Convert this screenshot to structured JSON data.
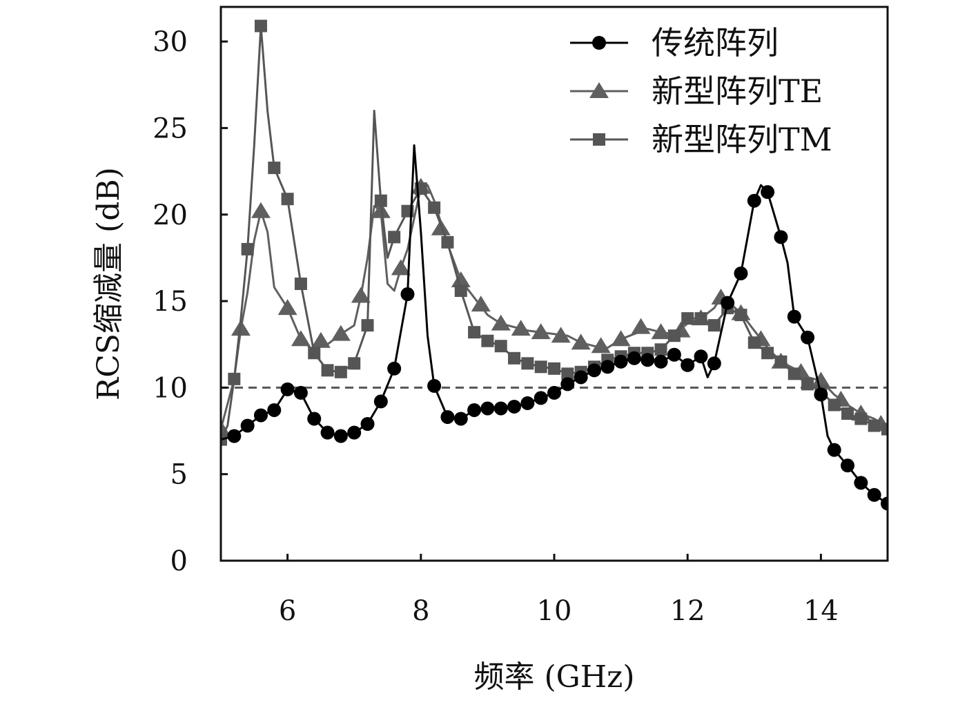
{
  "chart_data": {
    "type": "line",
    "title": "",
    "xlabel": "频率 (GHz)",
    "ylabel": "RCS缩减量 (dB)",
    "xlim": [
      5,
      15
    ],
    "ylim": [
      0,
      32
    ],
    "xticks": [
      6,
      8,
      10,
      12,
      14
    ],
    "yticks": [
      0,
      5,
      10,
      15,
      20,
      25,
      30
    ],
    "grid": false,
    "legend_position": "top-right",
    "reference_line": {
      "y": 10,
      "style": "dashed",
      "color": "#555555"
    },
    "series": [
      {
        "name": "传统阵列",
        "color": "#000000",
        "marker": "circle",
        "line": [
          [
            5.0,
            7.0
          ],
          [
            5.2,
            7.2
          ],
          [
            5.4,
            7.8
          ],
          [
            5.6,
            8.4
          ],
          [
            5.8,
            8.7
          ],
          [
            6.0,
            9.9
          ],
          [
            6.2,
            9.7
          ],
          [
            6.4,
            8.2
          ],
          [
            6.6,
            7.4
          ],
          [
            6.8,
            7.2
          ],
          [
            7.0,
            7.4
          ],
          [
            7.2,
            7.9
          ],
          [
            7.4,
            9.2
          ],
          [
            7.6,
            11.1
          ],
          [
            7.8,
            15.4
          ],
          [
            7.9,
            24.0
          ],
          [
            8.0,
            19.0
          ],
          [
            8.1,
            13.0
          ],
          [
            8.2,
            10.1
          ],
          [
            8.4,
            8.3
          ],
          [
            8.6,
            8.2
          ],
          [
            8.8,
            8.7
          ],
          [
            9.0,
            8.8
          ],
          [
            9.2,
            8.8
          ],
          [
            9.4,
            8.9
          ],
          [
            9.6,
            9.1
          ],
          [
            9.8,
            9.4
          ],
          [
            10.0,
            9.7
          ],
          [
            10.2,
            10.2
          ],
          [
            10.4,
            10.6
          ],
          [
            10.6,
            11.0
          ],
          [
            10.8,
            11.2
          ],
          [
            11.0,
            11.5
          ],
          [
            11.2,
            11.7
          ],
          [
            11.4,
            11.6
          ],
          [
            11.6,
            11.5
          ],
          [
            11.8,
            11.9
          ],
          [
            12.0,
            11.3
          ],
          [
            12.2,
            11.8
          ],
          [
            12.3,
            10.6
          ],
          [
            12.4,
            11.4
          ],
          [
            12.6,
            14.9
          ],
          [
            12.8,
            16.6
          ],
          [
            13.0,
            20.8
          ],
          [
            13.1,
            21.7
          ],
          [
            13.2,
            21.3
          ],
          [
            13.4,
            18.7
          ],
          [
            13.5,
            17.2
          ],
          [
            13.6,
            14.1
          ],
          [
            13.8,
            12.9
          ],
          [
            14.0,
            9.6
          ],
          [
            14.1,
            7.2
          ],
          [
            14.2,
            6.4
          ],
          [
            14.4,
            5.5
          ],
          [
            14.6,
            4.5
          ],
          [
            14.8,
            3.8
          ],
          [
            15.0,
            3.3
          ]
        ],
        "points": [
          [
            5.2,
            7.2
          ],
          [
            5.4,
            7.8
          ],
          [
            5.6,
            8.4
          ],
          [
            5.8,
            8.7
          ],
          [
            6.0,
            9.9
          ],
          [
            6.2,
            9.7
          ],
          [
            6.4,
            8.2
          ],
          [
            6.6,
            7.4
          ],
          [
            6.8,
            7.2
          ],
          [
            7.0,
            7.4
          ],
          [
            7.2,
            7.9
          ],
          [
            7.4,
            9.2
          ],
          [
            7.6,
            11.1
          ],
          [
            7.8,
            15.4
          ],
          [
            8.2,
            10.1
          ],
          [
            8.4,
            8.3
          ],
          [
            8.6,
            8.2
          ],
          [
            8.8,
            8.7
          ],
          [
            9.0,
            8.8
          ],
          [
            9.2,
            8.8
          ],
          [
            9.4,
            8.9
          ],
          [
            9.6,
            9.1
          ],
          [
            9.8,
            9.4
          ],
          [
            10.0,
            9.7
          ],
          [
            10.2,
            10.2
          ],
          [
            10.4,
            10.6
          ],
          [
            10.6,
            11.0
          ],
          [
            10.8,
            11.2
          ],
          [
            11.0,
            11.5
          ],
          [
            11.2,
            11.7
          ],
          [
            11.4,
            11.6
          ],
          [
            11.6,
            11.5
          ],
          [
            11.8,
            11.9
          ],
          [
            12.0,
            11.3
          ],
          [
            12.2,
            11.8
          ],
          [
            12.4,
            11.4
          ],
          [
            12.6,
            14.9
          ],
          [
            12.8,
            16.6
          ],
          [
            13.0,
            20.8
          ],
          [
            13.2,
            21.3
          ],
          [
            13.4,
            18.7
          ],
          [
            13.6,
            14.1
          ],
          [
            13.8,
            12.9
          ],
          [
            14.0,
            9.6
          ],
          [
            14.2,
            6.4
          ],
          [
            14.4,
            5.5
          ],
          [
            14.6,
            4.5
          ],
          [
            14.8,
            3.8
          ],
          [
            15.0,
            3.3
          ]
        ]
      },
      {
        "name": "新型阵列TE",
        "color": "#5f5f5f",
        "marker": "triangle",
        "line": [
          [
            5.0,
            7.6
          ],
          [
            5.2,
            10.5
          ],
          [
            5.3,
            13.4
          ],
          [
            5.4,
            15.5
          ],
          [
            5.5,
            18.5
          ],
          [
            5.6,
            20.2
          ],
          [
            5.7,
            19.0
          ],
          [
            5.8,
            15.8
          ],
          [
            6.0,
            14.6
          ],
          [
            6.2,
            12.8
          ],
          [
            6.4,
            12.1
          ],
          [
            6.5,
            12.7
          ],
          [
            6.6,
            12.5
          ],
          [
            6.8,
            13.1
          ],
          [
            7.0,
            13.6
          ],
          [
            7.1,
            15.3
          ],
          [
            7.2,
            17.5
          ],
          [
            7.3,
            20.5
          ],
          [
            7.4,
            20.2
          ],
          [
            7.5,
            16.0
          ],
          [
            7.6,
            15.6
          ],
          [
            7.7,
            16.9
          ],
          [
            7.8,
            18.0
          ],
          [
            8.0,
            21.6
          ],
          [
            8.1,
            21.7
          ],
          [
            8.2,
            20.8
          ],
          [
            8.4,
            18.3
          ],
          [
            8.6,
            16.2
          ],
          [
            8.8,
            15.2
          ],
          [
            9.0,
            14.2
          ],
          [
            9.2,
            13.7
          ],
          [
            9.4,
            13.5
          ],
          [
            9.6,
            13.3
          ],
          [
            9.8,
            13.2
          ],
          [
            10.0,
            13.1
          ],
          [
            10.2,
            13.0
          ],
          [
            10.4,
            12.6
          ],
          [
            10.6,
            12.4
          ],
          [
            10.8,
            12.3
          ],
          [
            11.0,
            12.8
          ],
          [
            11.2,
            13.1
          ],
          [
            11.4,
            13.4
          ],
          [
            11.6,
            13.2
          ],
          [
            11.8,
            13.1
          ],
          [
            12.0,
            13.7
          ],
          [
            12.2,
            14.0
          ],
          [
            12.4,
            14.6
          ],
          [
            12.5,
            15.2
          ],
          [
            12.6,
            15.0
          ],
          [
            12.8,
            14.3
          ],
          [
            13.0,
            13.3
          ],
          [
            13.2,
            12.3
          ],
          [
            13.4,
            11.5
          ],
          [
            13.6,
            11.1
          ],
          [
            13.8,
            10.6
          ],
          [
            14.0,
            10.4
          ],
          [
            14.2,
            9.6
          ],
          [
            14.4,
            9.0
          ],
          [
            14.6,
            8.5
          ],
          [
            14.8,
            8.2
          ],
          [
            15.0,
            7.7
          ]
        ],
        "points": [
          [
            5.0,
            7.6
          ],
          [
            5.3,
            13.4
          ],
          [
            5.6,
            20.2
          ],
          [
            6.0,
            14.6
          ],
          [
            6.2,
            12.8
          ],
          [
            6.5,
            12.7
          ],
          [
            6.8,
            13.1
          ],
          [
            7.1,
            15.3
          ],
          [
            7.4,
            20.2
          ],
          [
            7.7,
            16.9
          ],
          [
            8.0,
            21.6
          ],
          [
            8.3,
            19.2
          ],
          [
            8.6,
            16.2
          ],
          [
            8.9,
            14.8
          ],
          [
            9.2,
            13.7
          ],
          [
            9.5,
            13.4
          ],
          [
            9.8,
            13.2
          ],
          [
            10.1,
            13.0
          ],
          [
            10.4,
            12.6
          ],
          [
            10.7,
            12.4
          ],
          [
            11.0,
            12.8
          ],
          [
            11.3,
            13.5
          ],
          [
            11.6,
            13.2
          ],
          [
            11.9,
            13.3
          ],
          [
            12.2,
            14.0
          ],
          [
            12.5,
            15.2
          ],
          [
            12.8,
            14.3
          ],
          [
            13.1,
            12.8
          ],
          [
            13.4,
            11.5
          ],
          [
            13.7,
            10.9
          ],
          [
            14.0,
            10.4
          ],
          [
            14.3,
            9.3
          ],
          [
            14.6,
            8.5
          ],
          [
            14.9,
            7.9
          ]
        ]
      },
      {
        "name": "新型阵列TM",
        "color": "#555555",
        "marker": "square",
        "line": [
          [
            5.0,
            7.0
          ],
          [
            5.1,
            7.8
          ],
          [
            5.2,
            10.5
          ],
          [
            5.3,
            14.0
          ],
          [
            5.4,
            18.0
          ],
          [
            5.5,
            24.0
          ],
          [
            5.6,
            30.9
          ],
          [
            5.7,
            26.0
          ],
          [
            5.8,
            22.7
          ],
          [
            6.0,
            20.9
          ],
          [
            6.2,
            16.0
          ],
          [
            6.4,
            12.0
          ],
          [
            6.6,
            11.0
          ],
          [
            6.8,
            10.9
          ],
          [
            7.0,
            11.4
          ],
          [
            7.2,
            13.6
          ],
          [
            7.3,
            26.0
          ],
          [
            7.4,
            20.8
          ],
          [
            7.5,
            17.5
          ],
          [
            7.6,
            18.7
          ],
          [
            7.8,
            20.2
          ],
          [
            8.0,
            21.5
          ],
          [
            8.2,
            20.4
          ],
          [
            8.4,
            18.4
          ],
          [
            8.6,
            15.6
          ],
          [
            8.8,
            13.2
          ],
          [
            9.0,
            12.7
          ],
          [
            9.2,
            12.4
          ],
          [
            9.4,
            11.7
          ],
          [
            9.6,
            11.4
          ],
          [
            9.8,
            11.2
          ],
          [
            10.0,
            11.1
          ],
          [
            10.2,
            10.8
          ],
          [
            10.4,
            10.9
          ],
          [
            10.6,
            11.2
          ],
          [
            10.8,
            11.6
          ],
          [
            11.0,
            11.8
          ],
          [
            11.2,
            12.0
          ],
          [
            11.4,
            12.0
          ],
          [
            11.6,
            12.2
          ],
          [
            11.8,
            13.0
          ],
          [
            12.0,
            14.0
          ],
          [
            12.2,
            14.0
          ],
          [
            12.4,
            13.6
          ],
          [
            12.6,
            14.6
          ],
          [
            12.8,
            14.2
          ],
          [
            13.0,
            12.6
          ],
          [
            13.2,
            12.0
          ],
          [
            13.4,
            11.5
          ],
          [
            13.6,
            10.8
          ],
          [
            13.8,
            10.2
          ],
          [
            14.0,
            9.8
          ],
          [
            14.2,
            9.0
          ],
          [
            14.4,
            8.5
          ],
          [
            14.6,
            8.2
          ],
          [
            14.8,
            7.8
          ],
          [
            15.0,
            7.6
          ]
        ],
        "points": [
          [
            5.0,
            7.0
          ],
          [
            5.2,
            10.5
          ],
          [
            5.4,
            18.0
          ],
          [
            5.6,
            30.9
          ],
          [
            5.8,
            22.7
          ],
          [
            6.0,
            20.9
          ],
          [
            6.2,
            16.0
          ],
          [
            6.4,
            12.0
          ],
          [
            6.6,
            11.0
          ],
          [
            6.8,
            10.9
          ],
          [
            7.0,
            11.4
          ],
          [
            7.2,
            13.6
          ],
          [
            7.4,
            20.8
          ],
          [
            7.6,
            18.7
          ],
          [
            7.8,
            20.2
          ],
          [
            8.0,
            21.5
          ],
          [
            8.2,
            20.4
          ],
          [
            8.4,
            18.4
          ],
          [
            8.6,
            15.6
          ],
          [
            8.8,
            13.2
          ],
          [
            9.0,
            12.7
          ],
          [
            9.2,
            12.4
          ],
          [
            9.4,
            11.7
          ],
          [
            9.6,
            11.4
          ],
          [
            9.8,
            11.2
          ],
          [
            10.0,
            11.1
          ],
          [
            10.2,
            10.8
          ],
          [
            10.4,
            10.9
          ],
          [
            10.6,
            11.2
          ],
          [
            10.8,
            11.6
          ],
          [
            11.0,
            11.8
          ],
          [
            11.2,
            12.0
          ],
          [
            11.4,
            12.0
          ],
          [
            11.6,
            12.2
          ],
          [
            11.8,
            13.0
          ],
          [
            12.0,
            14.0
          ],
          [
            12.2,
            14.0
          ],
          [
            12.4,
            13.6
          ],
          [
            12.6,
            14.6
          ],
          [
            12.8,
            14.2
          ],
          [
            13.0,
            12.6
          ],
          [
            13.2,
            12.0
          ],
          [
            13.4,
            11.5
          ],
          [
            13.6,
            10.8
          ],
          [
            13.8,
            10.2
          ],
          [
            14.0,
            9.8
          ],
          [
            14.2,
            9.0
          ],
          [
            14.4,
            8.5
          ],
          [
            14.6,
            8.2
          ],
          [
            14.8,
            7.8
          ],
          [
            15.0,
            7.6
          ]
        ]
      }
    ]
  }
}
